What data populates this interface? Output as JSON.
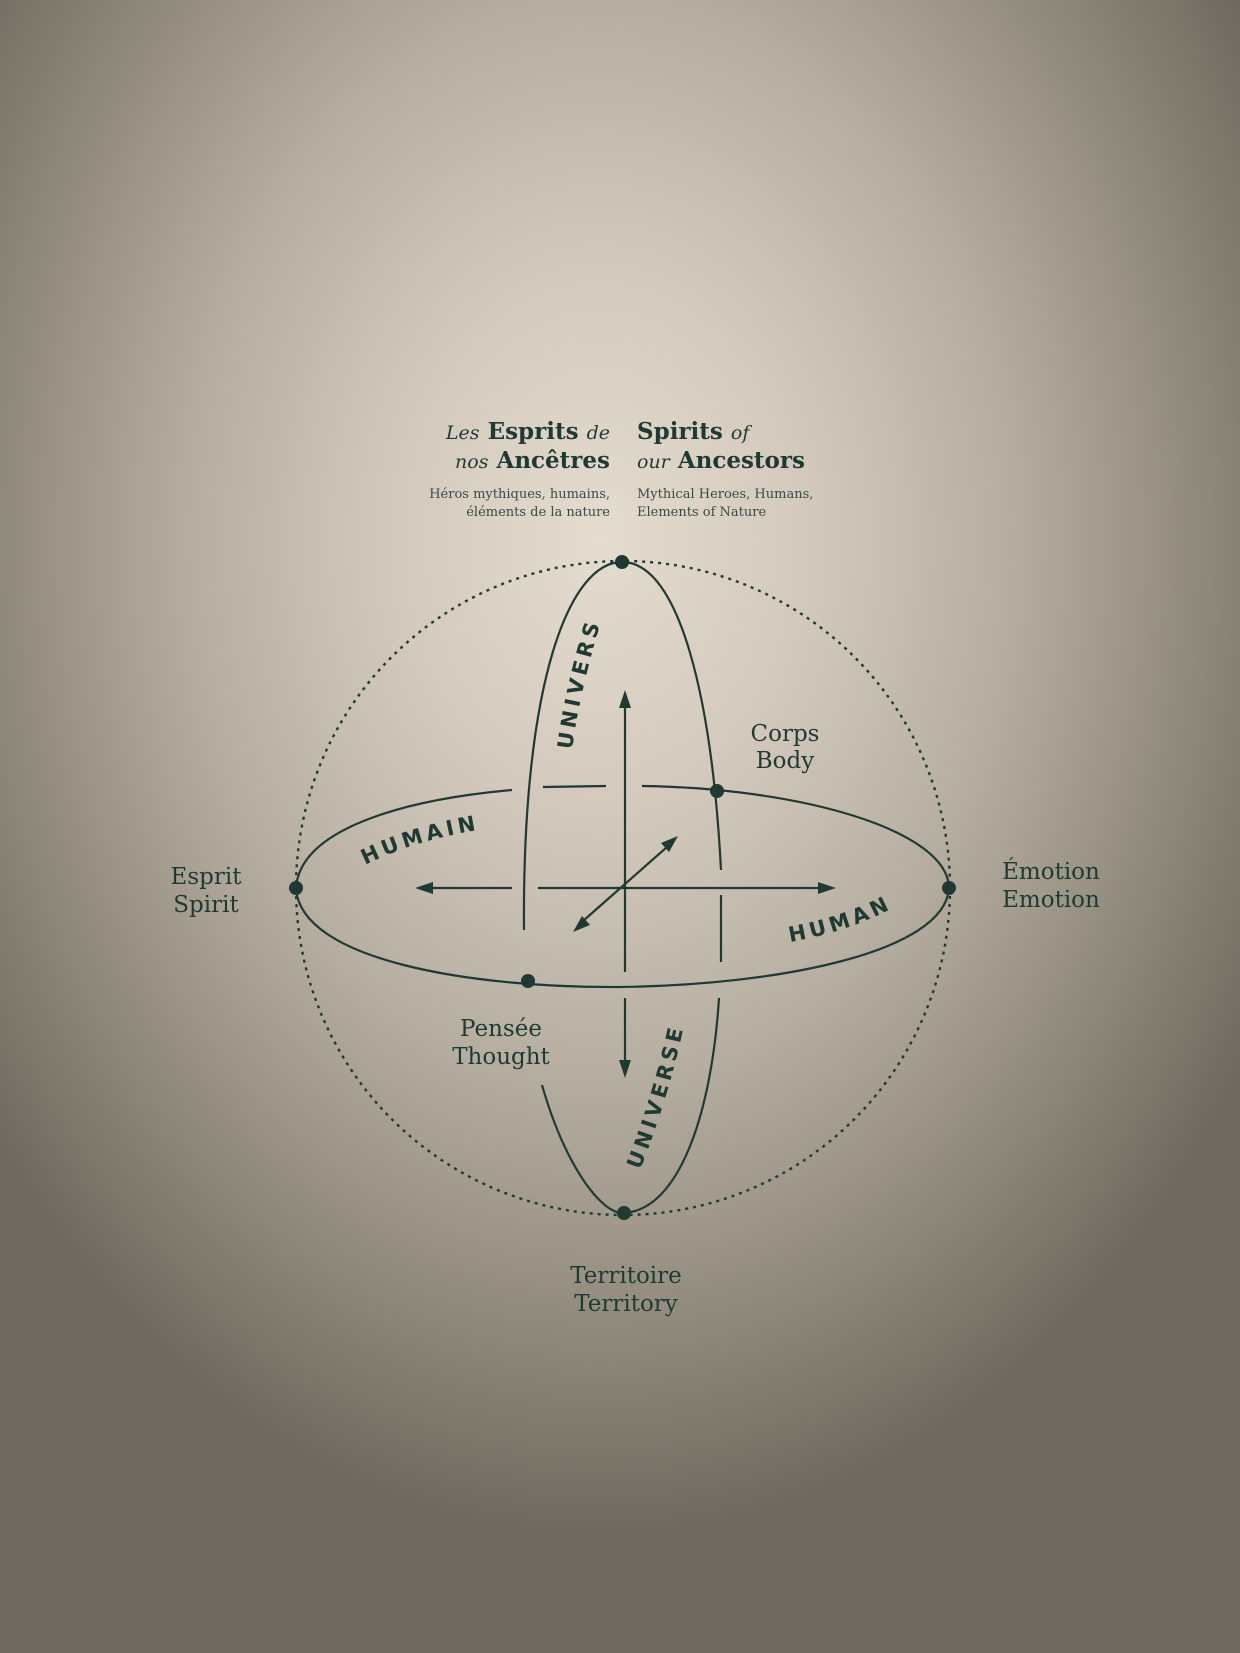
{
  "header": {
    "fr": {
      "line1_italic": "Les",
      "line1_bold": "Esprits",
      "line1_tail": "de",
      "line2_italic": "nos",
      "line2_bold": "Ancêtres",
      "sub_line1": "Héros mythiques, humains,",
      "sub_line2": "éléments de la nature"
    },
    "en": {
      "line1_bold": "Spirits",
      "line1_tail": "of",
      "line2_italic": "our",
      "line2_bold": "Ancestors",
      "sub_line1": "Mythical Heroes, Humans,",
      "sub_line2": "Elements of Nature"
    }
  },
  "ring_labels": {
    "univers": "UNIVERS",
    "universe": "UNIVERSE",
    "humain": "HUMAIN",
    "human": "HUMAN"
  },
  "poles": {
    "left": {
      "fr": "Esprit",
      "en": "Spirit"
    },
    "right": {
      "fr": "Émotion",
      "en": "Emotion"
    },
    "bottom": {
      "fr": "Territoire",
      "en": "Territory"
    },
    "upper_right": {
      "fr": "Corps",
      "en": "Body"
    },
    "lower_left": {
      "fr": "Pensée",
      "en": "Thought"
    }
  },
  "colors": {
    "ink": "#1f3a32",
    "wall_light": "#e5dcd0",
    "wall_dark": "#6e695f"
  }
}
